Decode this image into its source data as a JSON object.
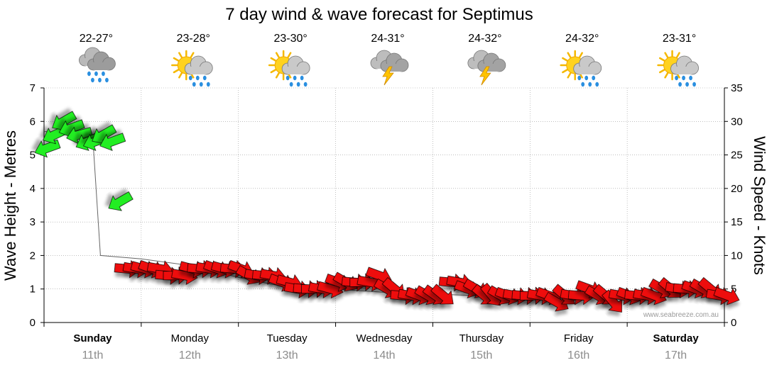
{
  "chart_data": {
    "type": "line",
    "title": "7 day wind & wave forecast for Septimus",
    "ylabel_left": "Wave Height - Metres",
    "ylabel_right": "Wind Speed - Knots",
    "ylim_left": [
      0,
      7
    ],
    "ylim_right": [
      0,
      35
    ],
    "yticks_left": [
      "0",
      "1",
      "2",
      "3",
      "4",
      "5",
      "6",
      "7"
    ],
    "yticks_right": [
      "0",
      "5",
      "10",
      "15",
      "20",
      "25",
      "30",
      "35"
    ],
    "grid": true,
    "credit": "www.seabreeze.com.au",
    "days": [
      {
        "day": "Sunday",
        "date": "11th",
        "temp": "22-27°",
        "weather": "rain-cloud-icon",
        "bold": true
      },
      {
        "day": "Monday",
        "date": "12th",
        "temp": "23-28°",
        "weather": "sun-rain-icon",
        "bold": false
      },
      {
        "day": "Tuesday",
        "date": "13th",
        "temp": "23-30°",
        "weather": "sun-rain-icon",
        "bold": false
      },
      {
        "day": "Wednesday",
        "date": "14th",
        "temp": "24-31°",
        "weather": "storm-icon",
        "bold": false
      },
      {
        "day": "Thursday",
        "date": "15th",
        "temp": "24-32°",
        "weather": "storm-icon",
        "bold": false
      },
      {
        "day": "Friday",
        "date": "16th",
        "temp": "24-32°",
        "weather": "sun-rain-icon",
        "bold": false
      },
      {
        "day": "Saturday",
        "date": "17th",
        "temp": "23-31°",
        "weather": "sun-rain-icon",
        "bold": true
      }
    ],
    "colors": {
      "wave_line": "#666666",
      "arrow_green": "#22ee22",
      "arrow_red": "#ee1111",
      "grid": "#999999"
    },
    "wave_height": {
      "name": "Wave Height",
      "day_offsets": [
        0.0,
        0.5,
        0.58,
        1.0,
        1.5,
        2.0,
        2.5,
        3.0,
        3.5,
        4.0,
        4.5,
        5.0,
        5.5,
        6.0,
        6.5,
        7.0
      ],
      "values": [
        5.7,
        5.6,
        2.0,
        1.9,
        1.7,
        1.35,
        1.05,
        1.0,
        0.9,
        0.85,
        0.8,
        0.75,
        0.85,
        0.85,
        0.9,
        0.9
      ]
    },
    "wind": {
      "name": "Wind Speed",
      "day_offsets": [
        0.0,
        0.08,
        0.17,
        0.25,
        0.33,
        0.42,
        0.5,
        0.58,
        0.67,
        0.75,
        0.83,
        0.92,
        1.0,
        1.08,
        1.17,
        1.25,
        1.33,
        1.42,
        1.5,
        1.58,
        1.67,
        1.75,
        1.83,
        1.92,
        2.0,
        2.08,
        2.17,
        2.25,
        2.33,
        2.42,
        2.5,
        2.58,
        2.67,
        2.75,
        2.83,
        2.92,
        3.0,
        3.08,
        3.17,
        3.25,
        3.33,
        3.42,
        3.5,
        3.58,
        3.67,
        3.75,
        3.83,
        3.92,
        4.0,
        4.08,
        4.17,
        4.25,
        4.33,
        4.42,
        4.5,
        4.58,
        4.67,
        4.75,
        4.83,
        4.92,
        5.0,
        5.08,
        5.17,
        5.25,
        5.33,
        5.42,
        5.5,
        5.58,
        5.67,
        5.75,
        5.83,
        5.92,
        6.0,
        6.08,
        6.17,
        6.25,
        6.33,
        6.42,
        6.5,
        6.58,
        6.67,
        6.75,
        6.83,
        6.92,
        7.0
      ],
      "knots": [
        26,
        28,
        30,
        29,
        28,
        27,
        27,
        28,
        27,
        18,
        8,
        8,
        8,
        8,
        8,
        7,
        7,
        7,
        8,
        8,
        8,
        8,
        8,
        8,
        8,
        7,
        7,
        7,
        7,
        6,
        6,
        5,
        5,
        5,
        5,
        5,
        6,
        6,
        6,
        6,
        6,
        7,
        5,
        5,
        4,
        4,
        4,
        4,
        4,
        4,
        6,
        6,
        5,
        5,
        4,
        4,
        4,
        4,
        4,
        4,
        4,
        4,
        4,
        3,
        4,
        4,
        4,
        5,
        4,
        4,
        3,
        4,
        4,
        4,
        4,
        4,
        5,
        5,
        5,
        5,
        5,
        5,
        5,
        4,
        4
      ],
      "direction_deg": [
        250,
        245,
        240,
        250,
        255,
        245,
        250,
        240,
        250,
        240,
        95,
        100,
        105,
        110,
        100,
        95,
        90,
        100,
        105,
        95,
        100,
        110,
        105,
        95,
        110,
        120,
        100,
        95,
        100,
        110,
        105,
        100,
        95,
        90,
        100,
        105,
        110,
        120,
        95,
        90,
        100,
        110,
        120,
        130,
        95,
        100,
        110,
        120,
        125,
        130,
        95,
        100,
        110,
        120,
        130,
        140,
        120,
        110,
        100,
        95,
        90,
        100,
        110,
        120,
        130,
        100,
        95,
        110,
        120,
        130,
        140,
        100,
        110,
        95,
        100,
        110,
        120,
        130,
        100,
        95,
        110,
        120,
        130,
        100,
        110
      ],
      "color_threshold_knots": 15
    }
  }
}
